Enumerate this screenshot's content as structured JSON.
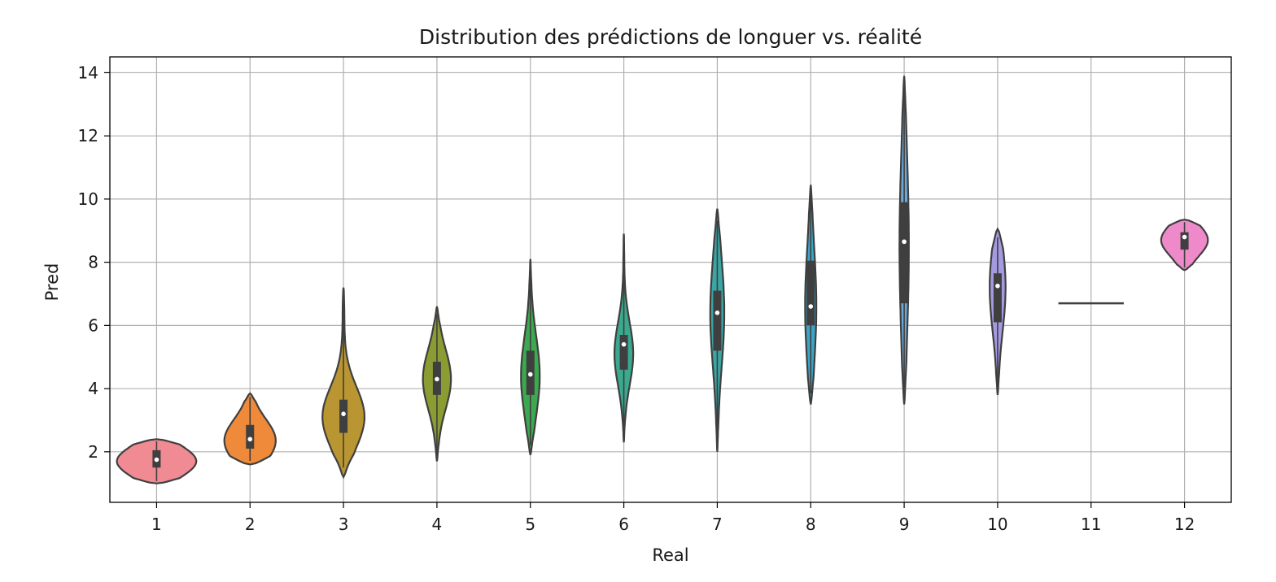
{
  "chart_data": {
    "type": "violin",
    "title": "Distribution des prédictions de longuer vs. réalité",
    "xlabel": "Real",
    "ylabel": "Pred",
    "categories": [
      "1",
      "2",
      "3",
      "4",
      "5",
      "6",
      "7",
      "8",
      "9",
      "10",
      "11",
      "12"
    ],
    "yticks": [
      "2",
      "4",
      "6",
      "8",
      "10",
      "12",
      "14"
    ],
    "ylim": [
      0.4,
      14.5
    ],
    "grid": true,
    "violins": [
      {
        "category": "1",
        "color": "#f08a93",
        "min": 1.0,
        "max": 2.4,
        "q1": 1.5,
        "median": 1.75,
        "q3": 2.05,
        "mode": 1.7,
        "width": 0.85
      },
      {
        "category": "2",
        "color": "#ee8a3a",
        "min": 1.6,
        "max": 3.85,
        "q1": 2.1,
        "median": 2.4,
        "q3": 2.85,
        "mode": 2.35,
        "width": 0.55
      },
      {
        "category": "3",
        "color": "#b99632",
        "min": 1.2,
        "max": 7.2,
        "q1": 2.6,
        "median": 3.2,
        "q3": 3.65,
        "mode": 3.1,
        "width": 0.45
      },
      {
        "category": "4",
        "color": "#8a9c32",
        "min": 1.7,
        "max": 6.6,
        "q1": 3.8,
        "median": 4.3,
        "q3": 4.85,
        "mode": 4.3,
        "width": 0.3
      },
      {
        "category": "5",
        "color": "#3ca84f",
        "min": 1.9,
        "max": 8.1,
        "q1": 3.8,
        "median": 4.45,
        "q3": 5.2,
        "mode": 4.4,
        "width": 0.2
      },
      {
        "category": "6",
        "color": "#3aa98e",
        "min": 2.3,
        "max": 8.9,
        "q1": 4.6,
        "median": 5.4,
        "q3": 5.7,
        "mode": 5.1,
        "width": 0.2
      },
      {
        "category": "7",
        "color": "#3aa6a5",
        "min": 2.0,
        "max": 9.7,
        "q1": 5.2,
        "median": 6.4,
        "q3": 7.1,
        "mode": 6.4,
        "width": 0.15
      },
      {
        "category": "8",
        "color": "#3ca4c7",
        "min": 3.5,
        "max": 10.45,
        "q1": 6.0,
        "median": 6.6,
        "q3": 8.05,
        "mode": 6.6,
        "width": 0.12
      },
      {
        "category": "9",
        "color": "#6aa8d9",
        "min": 3.5,
        "max": 13.9,
        "q1": 6.7,
        "median": 8.65,
        "q3": 9.9,
        "mode": 8.5,
        "width": 0.1
      },
      {
        "category": "10",
        "color": "#a49ae0",
        "min": 3.8,
        "max": 9.05,
        "q1": 6.1,
        "median": 7.25,
        "q3": 7.65,
        "mode": 7.2,
        "width": 0.17
      },
      {
        "category": "11",
        "color": "#c996e4",
        "min": 6.7,
        "max": 6.7,
        "q1": 6.7,
        "median": 6.7,
        "q3": 6.7,
        "mode": 6.7,
        "width": 0.7
      },
      {
        "category": "12",
        "color": "#ee8ac9",
        "min": 7.75,
        "max": 9.35,
        "q1": 8.4,
        "median": 8.8,
        "q3": 8.95,
        "mode": 8.7,
        "width": 0.5
      }
    ]
  }
}
